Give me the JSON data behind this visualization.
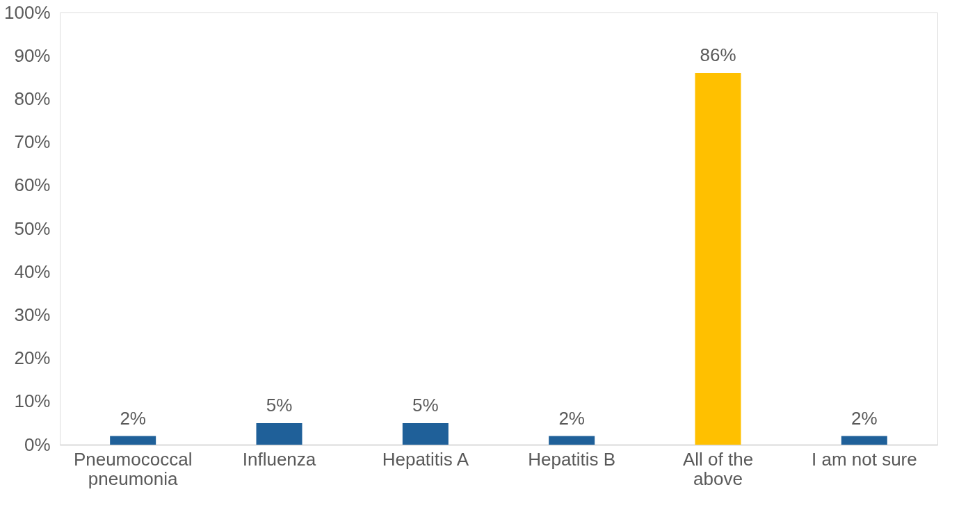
{
  "chart_data": {
    "type": "bar",
    "categories": [
      "Pneumococcal pneumonia",
      "Influenza",
      "Hepatitis A",
      "Hepatitis B",
      "All of the above",
      "I am not sure"
    ],
    "values": [
      2,
      5,
      5,
      2,
      86,
      2
    ],
    "colors": [
      "#1f6099",
      "#1f6099",
      "#1f6099",
      "#1f6099",
      "#ffc000",
      "#1f6099"
    ],
    "value_labels": [
      "2%",
      "5%",
      "5%",
      "2%",
      "86%",
      "2%"
    ],
    "ylim": [
      0,
      100
    ],
    "yticks": [
      {
        "value": 0,
        "label": "0%"
      },
      {
        "value": 10,
        "label": "10%"
      },
      {
        "value": 20,
        "label": "20%"
      },
      {
        "value": 30,
        "label": "30%"
      },
      {
        "value": 40,
        "label": "40%"
      },
      {
        "value": 50,
        "label": "50%"
      },
      {
        "value": 60,
        "label": "60%"
      },
      {
        "value": 70,
        "label": "70%"
      },
      {
        "value": 80,
        "label": "80%"
      },
      {
        "value": 90,
        "label": "90%"
      },
      {
        "value": 100,
        "label": "100%"
      }
    ],
    "grid": false
  }
}
